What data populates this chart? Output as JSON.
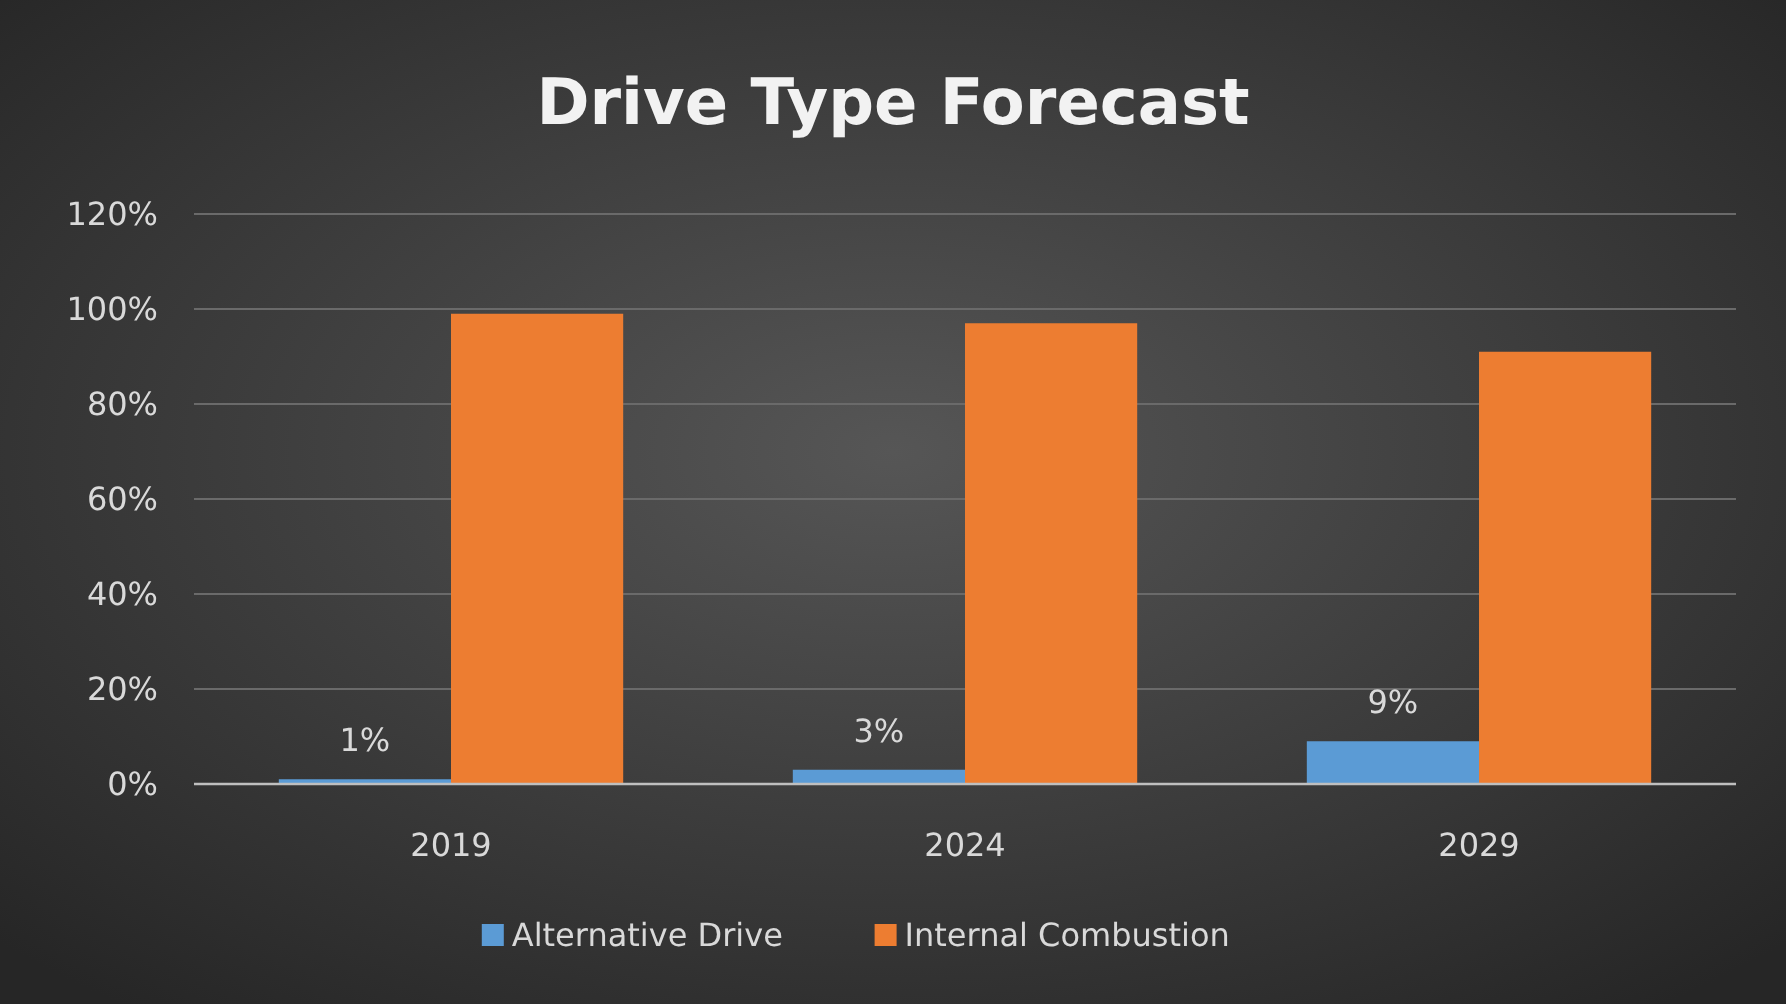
{
  "chart_data": {
    "type": "bar",
    "title": "Drive Type Forecast",
    "categories": [
      "2019",
      "2024",
      "2029"
    ],
    "series": [
      {
        "name": "Alternative Drive",
        "color": "#5b9bd5",
        "values": [
          1,
          3,
          9
        ],
        "value_labels": [
          "1%",
          "3%",
          "9%"
        ]
      },
      {
        "name": "Internal Combustion",
        "color": "#ed7d31",
        "values": [
          99,
          97,
          91
        ]
      }
    ],
    "ylim": [
      0,
      120
    ],
    "yticks": [
      {
        "value": 0,
        "label": "0%"
      },
      {
        "value": 20,
        "label": "20%"
      },
      {
        "value": 40,
        "label": "40%"
      },
      {
        "value": 60,
        "label": "60%"
      },
      {
        "value": 80,
        "label": "80%"
      },
      {
        "value": 100,
        "label": "100%"
      },
      {
        "value": 120,
        "label": "120%"
      }
    ],
    "grid": "y",
    "legend": "bottom"
  }
}
